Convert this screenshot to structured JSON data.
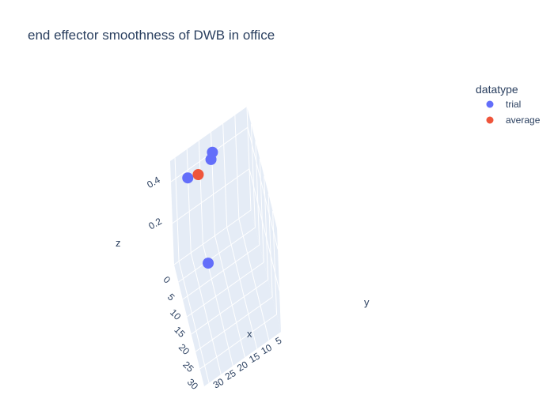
{
  "chart_data": {
    "type": "scatter3d",
    "title": "end effector smoothness of DWB in office",
    "xlabel": "x",
    "ylabel": "y",
    "zlabel": "z",
    "x_ticks": [
      "0",
      "5",
      "10",
      "15",
      "20",
      "25",
      "30"
    ],
    "y_ticks": [
      "5",
      "10",
      "15",
      "20",
      "25",
      "30"
    ],
    "z_ticks": [
      "0.2",
      "0.4"
    ],
    "xlim": [
      0,
      35
    ],
    "ylim": [
      0,
      32
    ],
    "zlim": [
      0,
      0.5
    ],
    "legend": {
      "title": "datatype",
      "placement": "top-right"
    },
    "series": [
      {
        "name": "trial",
        "color": "#636efa",
        "points": [
          {
            "x": 1,
            "y": 15,
            "z": 0.42
          },
          {
            "x": 2,
            "y": 16,
            "z": 0.41
          },
          {
            "x": 3,
            "y": 26,
            "z": 0.42
          },
          {
            "x": 30,
            "y": 27,
            "z": 0.47
          }
        ]
      },
      {
        "name": "average",
        "color": "#ef553b",
        "points": [
          {
            "x": 4,
            "y": 22,
            "z": 0.42
          }
        ]
      }
    ]
  }
}
